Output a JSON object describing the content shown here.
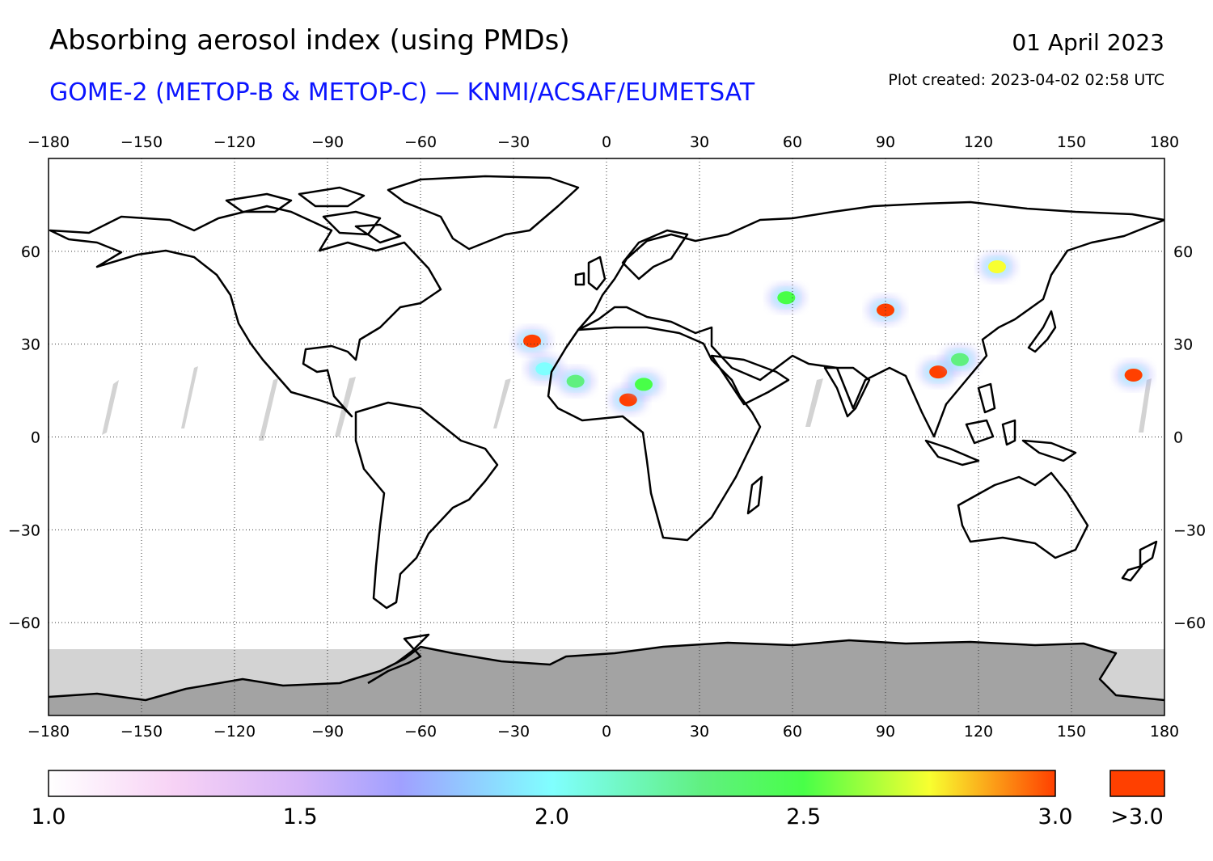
{
  "header": {
    "title": "Absorbing aerosol index (using PMDs)",
    "subtitle": "GOME-2 (METOP-B & METOP-C) — KNMI/ACSAF/EUMETSAT",
    "date": "01 April 2023",
    "created": "Plot created: 2023-04-02 02:58 UTC"
  },
  "map": {
    "lon_range": [
      -180,
      180
    ],
    "lat_range": [
      -90,
      90
    ],
    "lon_ticks": [
      -180,
      -150,
      -120,
      -90,
      -60,
      -30,
      0,
      30,
      60,
      90,
      120,
      150,
      180
    ],
    "lat_ticks": [
      60,
      30,
      0,
      -30,
      -60
    ],
    "lon_tick_labels": [
      "−180",
      "−150",
      "−120",
      "−90",
      "−60",
      "−30",
      "0",
      "30",
      "60",
      "90",
      "120",
      "150",
      "180"
    ],
    "lat_tick_labels": [
      "60",
      "30",
      "0",
      "−30",
      "−60"
    ],
    "grid": "dotted",
    "no_data_color": "#d3d3d3",
    "land_no_data_color": "#a3a3a3",
    "coastline_color": "#000000"
  },
  "chart_data": {
    "type": "heatmap",
    "title": "Absorbing aerosol index (using PMDs)",
    "colorbar": {
      "min": 1.0,
      "max": 3.0,
      "tick_values": [
        1.0,
        1.5,
        2.0,
        2.5,
        3.0
      ],
      "tick_labels": [
        "1.0",
        "1.5",
        "2.0",
        "2.5",
        "3.0"
      ],
      "overflow_label": ">3.0",
      "overflow_color": "#ff4000",
      "stops": [
        {
          "v": 1.0,
          "color": "#ffffff"
        },
        {
          "v": 1.25,
          "color": "#f7d2f5"
        },
        {
          "v": 1.5,
          "color": "#d5b4f8"
        },
        {
          "v": 1.7,
          "color": "#a0a0ff"
        },
        {
          "v": 2.0,
          "color": "#80ffff"
        },
        {
          "v": 2.3,
          "color": "#60f080"
        },
        {
          "v": 2.5,
          "color": "#48ff48"
        },
        {
          "v": 2.75,
          "color": "#f8ff30"
        },
        {
          "v": 3.0,
          "color": "#ff4000"
        }
      ]
    },
    "plumes": [
      {
        "lon": -24,
        "lat": 31,
        "value": 3.2
      },
      {
        "lon": -20,
        "lat": 22,
        "value": 1.9
      },
      {
        "lon": -10,
        "lat": 18,
        "value": 2.2
      },
      {
        "lon": 7,
        "lat": 12,
        "value": 3.2
      },
      {
        "lon": 12,
        "lat": 17,
        "value": 2.4
      },
      {
        "lon": 90,
        "lat": 41,
        "value": 3.1
      },
      {
        "lon": 107,
        "lat": 21,
        "value": 3.2
      },
      {
        "lon": 114,
        "lat": 25,
        "value": 2.1
      },
      {
        "lon": 126,
        "lat": 55,
        "value": 2.6
      },
      {
        "lon": 58,
        "lat": 45,
        "value": 2.4
      },
      {
        "lon": 170,
        "lat": 20,
        "value": 3.1
      }
    ]
  }
}
